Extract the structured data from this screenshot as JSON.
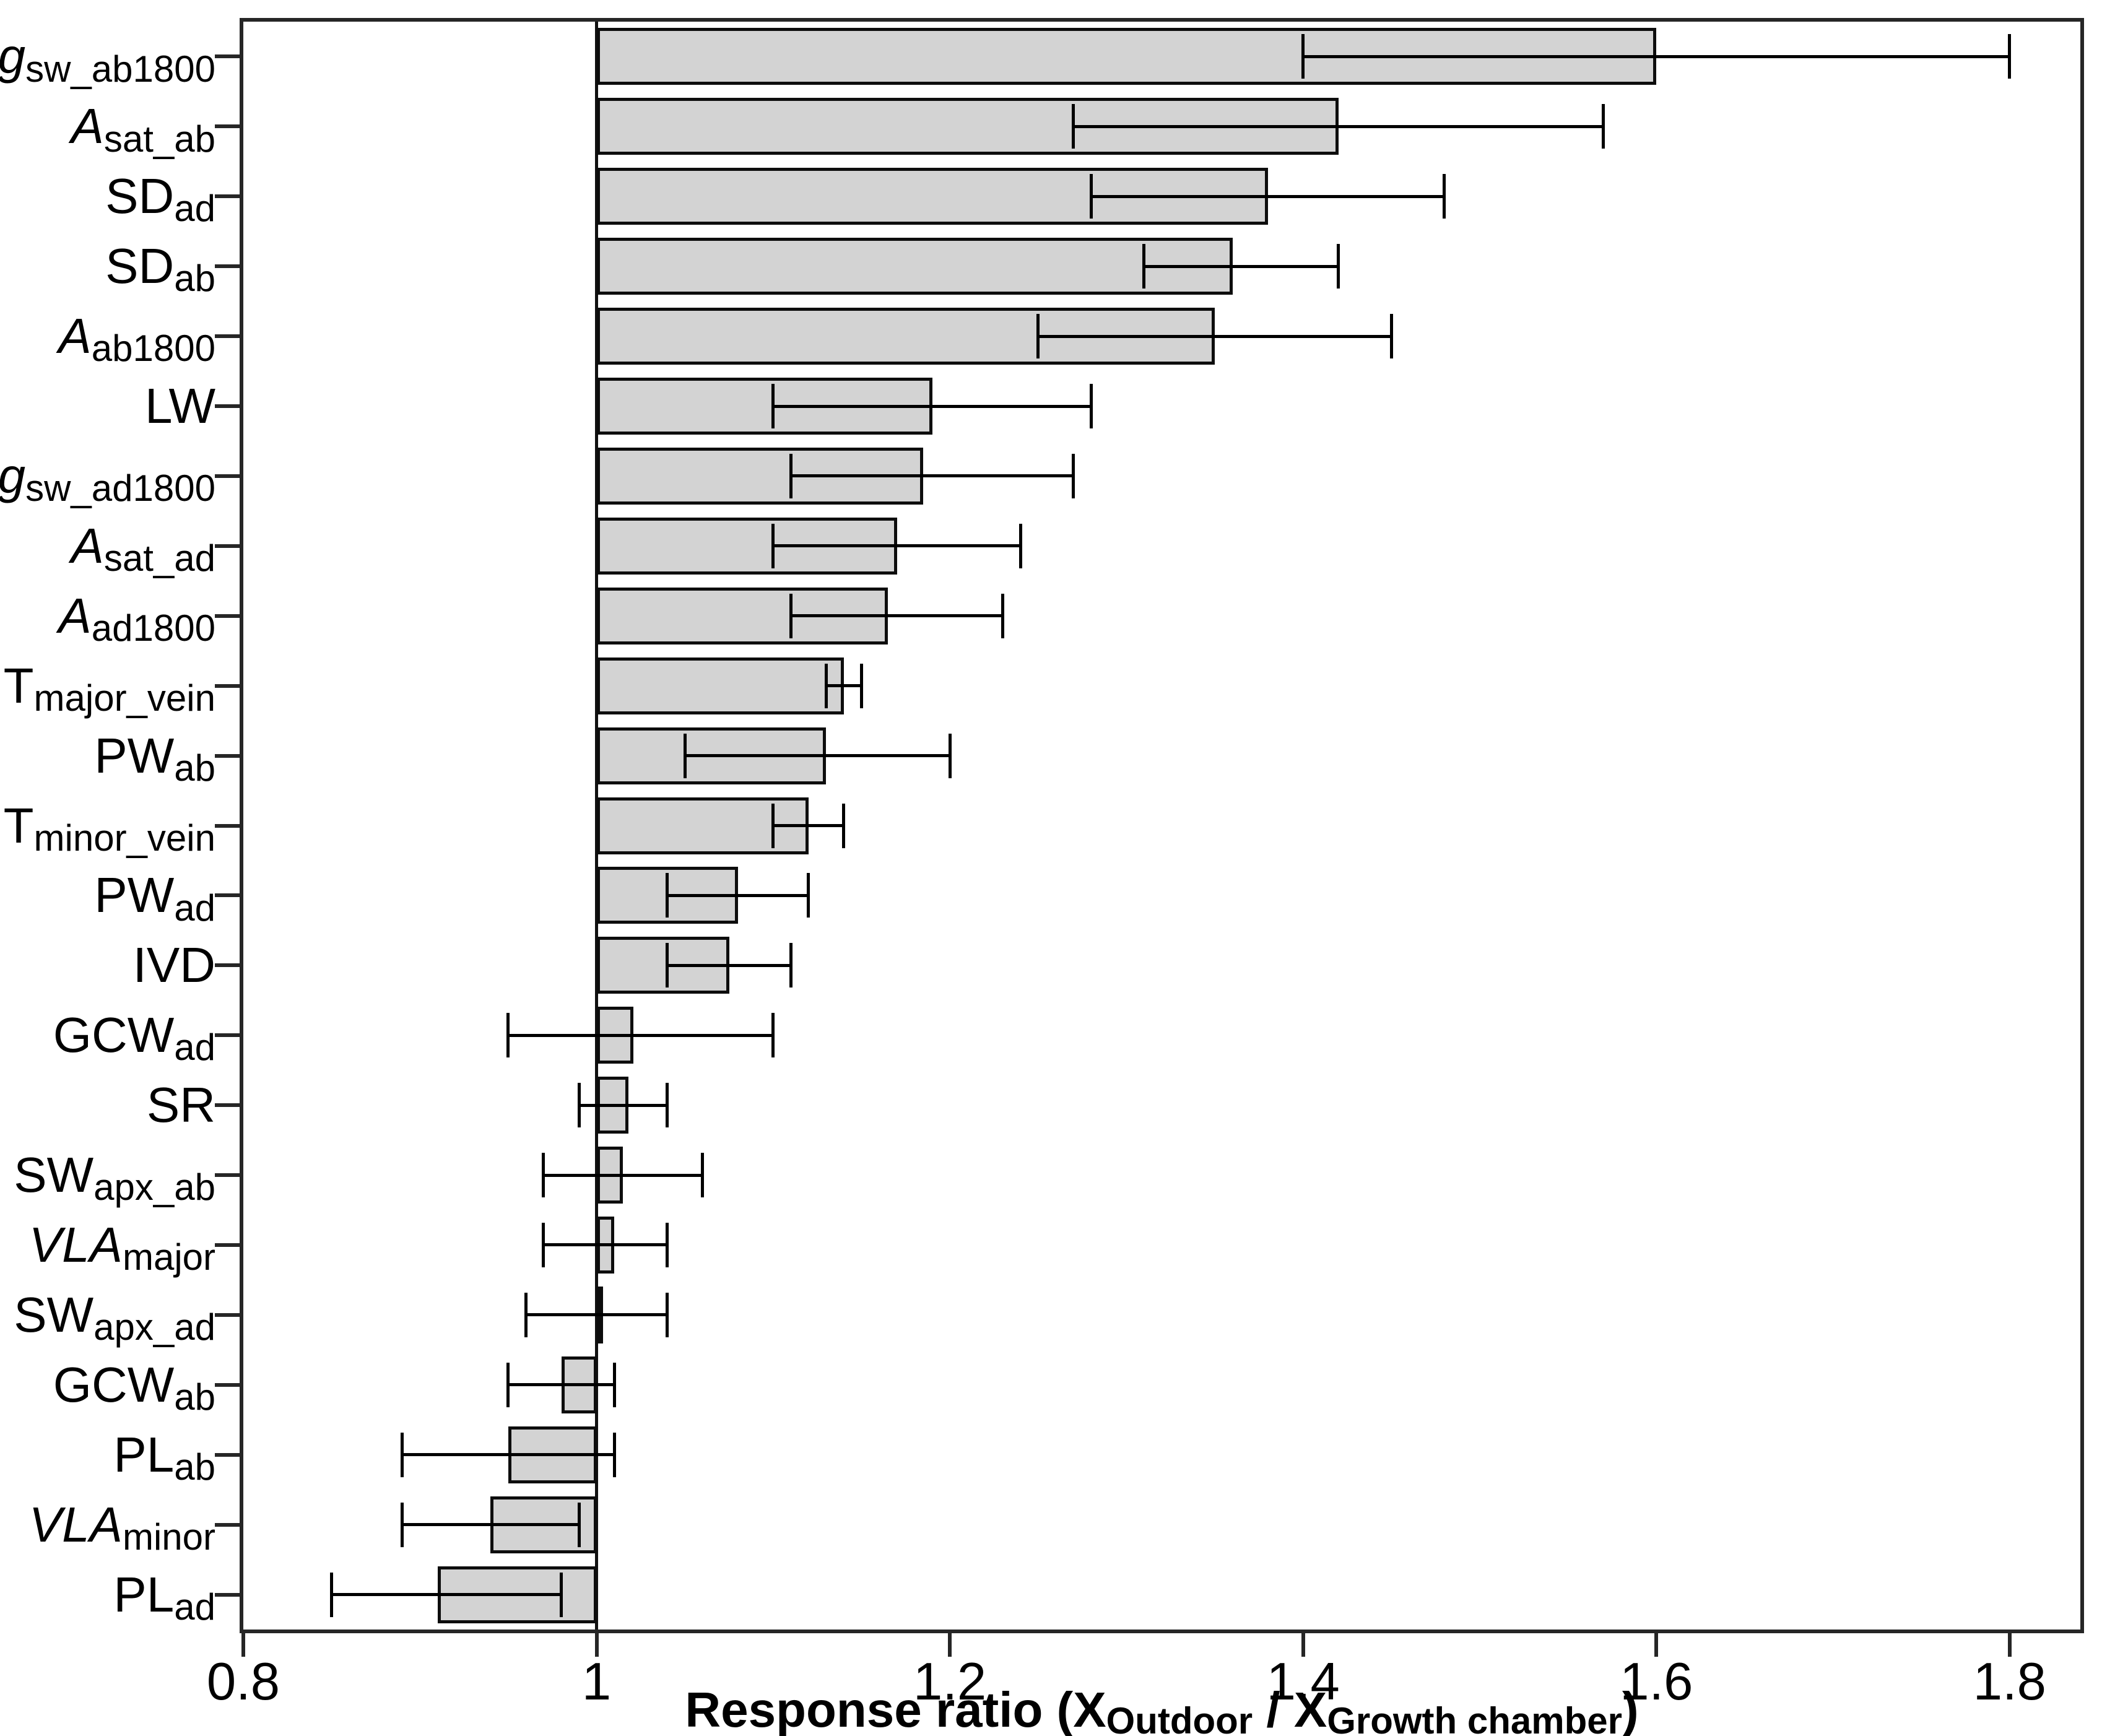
{
  "figure": {
    "background": "#ffffff",
    "frame_color": "#262626",
    "bar_fill": "#d3d3d3",
    "bar_border": "#0d0d0d",
    "error_color": "#000000"
  },
  "chart_data": {
    "type": "bar",
    "orientation": "horizontal",
    "title": "",
    "xlabel_plain": "Response ratio (X_Outdoor / X_Growth chamber)",
    "xlabel_segments": [
      {
        "text": "Response ratio (X",
        "sub": false
      },
      {
        "text": "Outdoor",
        "sub": true
      },
      {
        "text": " / X",
        "sub": false
      },
      {
        "text": "Growth chamber",
        "sub": true
      },
      {
        "text": ")",
        "sub": false
      }
    ],
    "xlim": [
      0.8,
      1.84
    ],
    "baseline": 1,
    "grid": false,
    "legend": null,
    "x_ticks": [
      0.8,
      1.0,
      1.2,
      1.4,
      1.6,
      1.8
    ],
    "x_tick_labels": [
      "0.8",
      "1",
      "1.2",
      "1.4",
      "1.6",
      "1.8"
    ],
    "categories": [
      {
        "main": "g",
        "sub": "sw_ab1800",
        "italic": true
      },
      {
        "main": "A",
        "sub": "sat_ab",
        "italic": true
      },
      {
        "main": "SD",
        "sub": "ad",
        "italic": false
      },
      {
        "main": "SD",
        "sub": "ab",
        "italic": false
      },
      {
        "main": "A",
        "sub": "ab1800",
        "italic": true
      },
      {
        "main": "LW",
        "sub": "",
        "italic": false
      },
      {
        "main": "g",
        "sub": "sw_ad1800",
        "italic": true
      },
      {
        "main": "A",
        "sub": "sat_ad",
        "italic": true
      },
      {
        "main": "A",
        "sub": "ad1800",
        "italic": true
      },
      {
        "main": "T",
        "sub": "major_vein",
        "italic": false
      },
      {
        "main": "PW",
        "sub": "ab",
        "italic": false
      },
      {
        "main": "T",
        "sub": "minor_vein",
        "italic": false
      },
      {
        "main": "PW",
        "sub": "ad",
        "italic": false
      },
      {
        "main": "IVD",
        "sub": "",
        "italic": false
      },
      {
        "main": "GCW",
        "sub": "ad",
        "italic": false
      },
      {
        "main": "SR",
        "sub": "",
        "italic": false
      },
      {
        "main": "SW",
        "sub": "apx_ab",
        "italic": false
      },
      {
        "main": "VLA",
        "sub": "major",
        "italic": true
      },
      {
        "main": "SW",
        "sub": "apx_ad",
        "italic": false
      },
      {
        "main": "GCW",
        "sub": "ab",
        "italic": false
      },
      {
        "main": "PL",
        "sub": "ab",
        "italic": false
      },
      {
        "main": "VLA",
        "sub": "minor",
        "italic": true
      },
      {
        "main": "PL",
        "sub": "ad",
        "italic": false
      }
    ],
    "values": [
      1.6,
      1.42,
      1.38,
      1.36,
      1.35,
      1.19,
      1.185,
      1.17,
      1.165,
      1.14,
      1.13,
      1.12,
      1.08,
      1.075,
      1.021,
      1.018,
      1.015,
      1.01,
      1.0,
      0.98,
      0.95,
      0.94,
      0.91
    ],
    "error_low": [
      1.4,
      1.27,
      1.28,
      1.31,
      1.25,
      1.1,
      1.11,
      1.1,
      1.11,
      1.13,
      1.05,
      1.1,
      1.04,
      1.04,
      0.95,
      0.99,
      0.97,
      0.97,
      0.96,
      0.95,
      0.89,
      0.89,
      0.85
    ],
    "error_high": [
      1.8,
      1.57,
      1.48,
      1.42,
      1.45,
      1.28,
      1.27,
      1.24,
      1.23,
      1.15,
      1.2,
      1.14,
      1.12,
      1.11,
      1.1,
      1.04,
      1.06,
      1.04,
      1.04,
      1.01,
      1.01,
      0.99,
      0.98
    ]
  }
}
